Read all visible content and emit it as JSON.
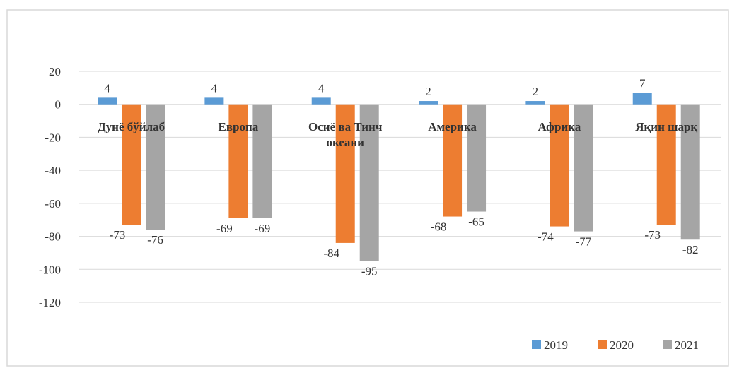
{
  "chart_data": {
    "type": "bar",
    "categories": [
      "Дунё бўйлаб",
      "Европа",
      "Осиё ва Тинч океани",
      "Америка",
      "Африка",
      "Яқин шарқ"
    ],
    "category_lines": [
      [
        "Дунё бўйлаб"
      ],
      [
        "Европа"
      ],
      [
        "Осиё ва Тинч",
        "океани"
      ],
      [
        "Америка"
      ],
      [
        "Африка"
      ],
      [
        "Яқин шарқ"
      ]
    ],
    "series": [
      {
        "name": "2019",
        "values": [
          4,
          4,
          4,
          2,
          2,
          7
        ],
        "color": "#5B9BD5"
      },
      {
        "name": "2020",
        "values": [
          -73,
          -69,
          -84,
          -68,
          -74,
          -73
        ],
        "color": "#ED7D31"
      },
      {
        "name": "2021",
        "values": [
          -76,
          -69,
          -95,
          -65,
          -77,
          -82
        ],
        "color": "#A5A5A5"
      }
    ],
    "ylim": [
      -120,
      20
    ],
    "yticks": [
      20,
      0,
      -20,
      -40,
      -60,
      -80,
      -100,
      -120
    ],
    "grid": true,
    "legend_position": "bottom-right"
  }
}
